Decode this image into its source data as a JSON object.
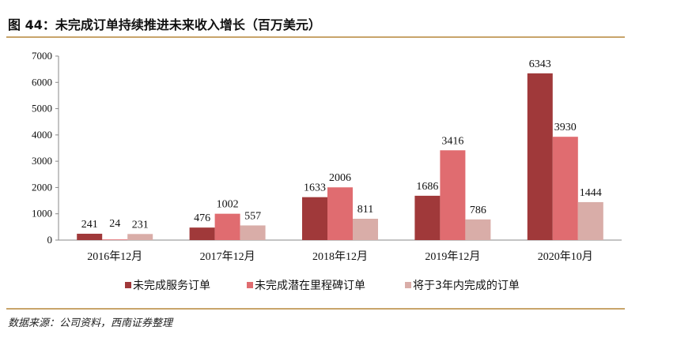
{
  "header": {
    "title": "图 44：未完成订单持续推进未来收入增长（百万美元）"
  },
  "footer": {
    "source": "数据来源：公司资料，西南证券整理"
  },
  "colors": {
    "accent_line": "#c8a46a"
  },
  "chart_data": {
    "type": "bar",
    "title": "",
    "xlabel": "",
    "ylabel": "",
    "ylim": [
      0,
      7000
    ],
    "yticks": [
      0,
      1000,
      2000,
      3000,
      4000,
      5000,
      6000,
      7000
    ],
    "grid": false,
    "legend_position": "bottom",
    "categories": [
      "2016年12月",
      "2017年12月",
      "2018年12月",
      "2019年12月",
      "2020年10月"
    ],
    "series": [
      {
        "name": "未完成服务订单",
        "color": "#a0393a",
        "values": [
          241,
          476,
          1633,
          1686,
          6343
        ]
      },
      {
        "name": "未完成潜在里程碑订单",
        "color": "#e06c70",
        "values": [
          24,
          1002,
          2006,
          3416,
          3930
        ]
      },
      {
        "name": "将于3年内完成的订单",
        "color": "#d9ada8",
        "values": [
          231,
          557,
          811,
          786,
          1444
        ]
      }
    ]
  }
}
